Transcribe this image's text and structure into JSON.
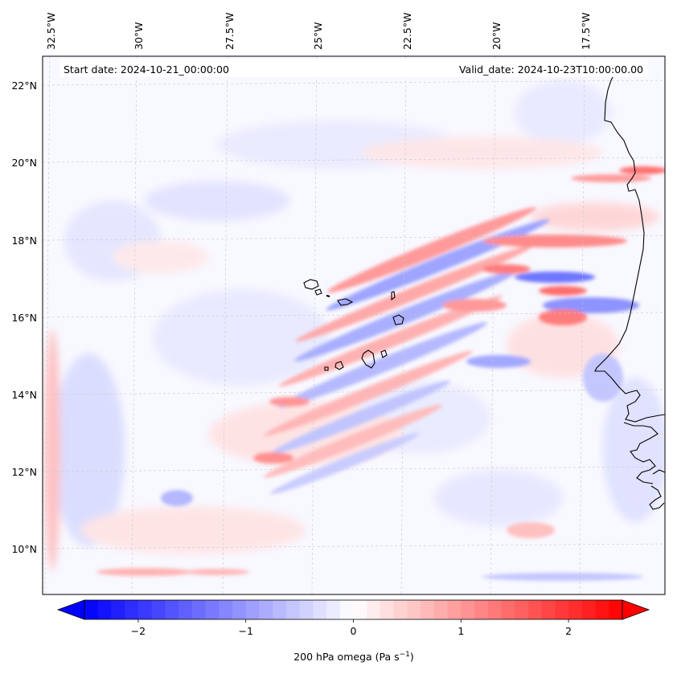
{
  "header": {
    "start_date": "Start date: 2024-10-21_00:00:00",
    "valid_date": "Valid_date: 2024-10-23T10:00:00.00"
  },
  "lon_labels": [
    "32.5°W",
    "30°W",
    "27.5°W",
    "25°W",
    "22.5°W",
    "20°W",
    "17.5°W"
  ],
  "lat_labels": [
    "22°N",
    "20°N",
    "18°N",
    "16°N",
    "14°N",
    "12°N",
    "10°N"
  ],
  "colorbar": {
    "ticks": [
      "−2",
      "−1",
      "0",
      "1",
      "2"
    ],
    "tick_values": [
      -2,
      -1,
      0,
      1,
      2
    ],
    "range": [
      -2.5,
      2.5
    ],
    "label_main": "200 hPa omega (Pa s",
    "label_sup": "−1",
    "label_end": ")",
    "cmap": "bwr",
    "low_color": "#0000ff",
    "mid_color": "#ffffff",
    "high_color": "#ff0000"
  },
  "map": {
    "lon_range": [
      -33,
      -16
    ],
    "lat_range": [
      9,
      23
    ],
    "background_color": "#f8f8ff",
    "grid": true
  }
}
